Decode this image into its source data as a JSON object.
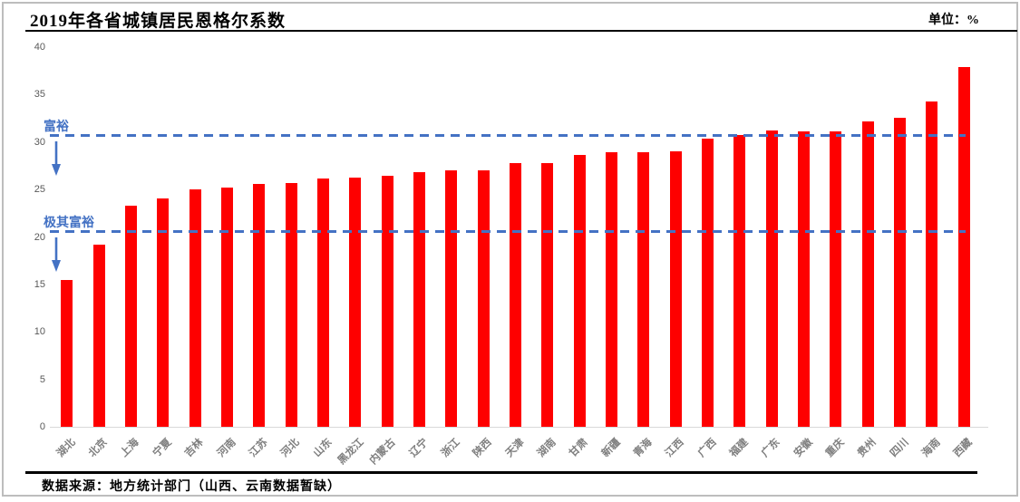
{
  "header": {
    "title": "2019年各省城镇居民恩格尔系数",
    "unit_label": "单位：%"
  },
  "footer": {
    "source": "数据来源：地方统计部门（山西、云南数据暂缺）"
  },
  "chart_data": {
    "type": "bar",
    "title": "2019年各省城镇居民恩格尔系数",
    "unit": "%",
    "xlabel": "",
    "ylabel": "",
    "ylim": [
      0,
      40
    ],
    "yticks": [
      0,
      5,
      10,
      15,
      20,
      25,
      30,
      35,
      40
    ],
    "grid": false,
    "legend": false,
    "bar_color": "#fe0000",
    "reference_color": "#4472c4",
    "categories": [
      "湖北",
      "北京",
      "上海",
      "宁夏",
      "吉林",
      "河南",
      "江苏",
      "河北",
      "山东",
      "黑龙江",
      "内蒙古",
      "辽宁",
      "浙江",
      "陕西",
      "天津",
      "湖南",
      "甘肃",
      "新疆",
      "青海",
      "江西",
      "广西",
      "福建",
      "广东",
      "安徽",
      "重庆",
      "贵州",
      "四川",
      "海南",
      "西藏"
    ],
    "values": [
      15.5,
      19.2,
      23.3,
      24.1,
      25.0,
      25.2,
      25.6,
      25.7,
      26.2,
      26.3,
      26.4,
      26.8,
      27.0,
      27.0,
      27.8,
      27.8,
      28.6,
      28.9,
      28.9,
      29.0,
      30.4,
      30.7,
      31.2,
      31.1,
      31.1,
      32.2,
      32.6,
      34.3,
      37.9
    ],
    "ref_lines": [
      {
        "label": "富裕",
        "value": 30.7
      },
      {
        "label": "极其富裕",
        "value": 20.6
      }
    ]
  }
}
